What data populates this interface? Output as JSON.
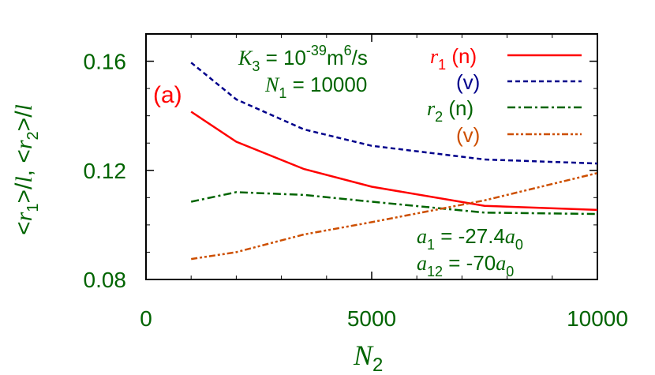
{
  "chart_data": {
    "type": "line",
    "panel_label": "(a)",
    "xlim": [
      0,
      10000
    ],
    "ylim": [
      0.08,
      0.17
    ],
    "x_ticks": [
      0,
      5000,
      10000
    ],
    "x_tick_labels": [
      "0",
      "5000",
      "10000"
    ],
    "y_ticks": [
      0.08,
      0.12,
      0.16
    ],
    "y_tick_labels": [
      "0.08",
      "0.12",
      "0.16"
    ],
    "xlabel": "N2",
    "ylabel": "<r1>/l, <r2>/l",
    "grid": false,
    "legend_position": "top-right",
    "annotations": {
      "k3": "K3 = 10^-39 m^6/s",
      "n1": "N1 = 10000",
      "a1": "a1 = -27.4a0",
      "a12": "a12 = -70a0"
    },
    "series": [
      {
        "name": "r1 (n)",
        "color": "#ff0000",
        "dash": "solid",
        "x": [
          1000,
          2000,
          3500,
          5000,
          7500,
          10000
        ],
        "y": [
          0.1415,
          0.1305,
          0.1205,
          0.114,
          0.107,
          0.1055
        ]
      },
      {
        "name": "(v)",
        "color": "#00008b",
        "dash": "dash",
        "x": [
          1000,
          2000,
          3500,
          5000,
          7500,
          10000
        ],
        "y": [
          0.1595,
          0.146,
          0.135,
          0.129,
          0.124,
          0.1225
        ]
      },
      {
        "name": "r2 (n)",
        "color": "#006400",
        "dash": "dashdot",
        "x": [
          1000,
          2000,
          3500,
          5000,
          7500,
          10000
        ],
        "y": [
          0.1085,
          0.112,
          0.111,
          0.1085,
          0.1045,
          0.104
        ]
      },
      {
        "name": "(v)",
        "color": "#cd4f00",
        "dash": "dashdotdot",
        "x": [
          1000,
          2000,
          3500,
          5000,
          7500,
          10000
        ],
        "y": [
          0.0875,
          0.09,
          0.0965,
          0.101,
          0.109,
          0.119
        ]
      }
    ]
  }
}
